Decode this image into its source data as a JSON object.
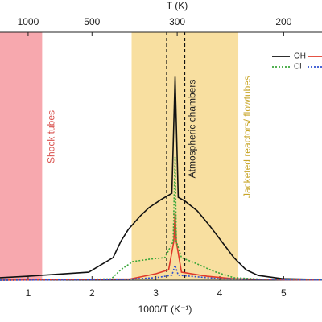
{
  "chart_data": {
    "type": "line",
    "xlabel": "1000/T (K⁻¹)",
    "xlim": [
      0.56,
      5.6
    ],
    "xticks": [
      1,
      2,
      3,
      4,
      5
    ],
    "ylim": [
      0,
      100
    ],
    "top_axis": {
      "label": "T (K)",
      "ticks": [
        1000,
        500,
        300,
        200
      ]
    },
    "regions": [
      {
        "label": "Shock tubes",
        "start": 0.56,
        "end": 1.22,
        "color": "#f7a8ae",
        "text_color": "#d9534f"
      },
      {
        "label": "Jacketed reactors/ flowtubes",
        "start": 2.62,
        "end": 4.29,
        "color": "#f8dfa0",
        "text_color": "#c8a62a"
      }
    ],
    "vlines": [
      3.17,
      3.45
    ],
    "vline_label": "Atmospheric chambers",
    "series": [
      {
        "name": "OH",
        "color": "#111111",
        "dash": "none",
        "x": [
          0.56,
          1,
          1.95,
          2.33,
          2.45,
          2.57,
          2.76,
          2.89,
          3.08,
          3.25,
          3.3,
          3.35,
          3.46,
          3.65,
          3.84,
          4.03,
          4.22,
          4.41,
          4.6,
          4.98,
          5.6
        ],
        "values": [
          1,
          1.6,
          3.2,
          9.1,
          15.6,
          20.5,
          26,
          29.2,
          32.5,
          35,
          82,
          33.4,
          31.8,
          27.9,
          22,
          15.6,
          9.1,
          4.2,
          1.9,
          0.6,
          0.3
        ]
      },
      {
        "color": "#e03a2a",
        "dash": "none",
        "x": [
          0.56,
          2.6,
          3.0,
          3.2,
          3.28,
          3.3,
          3.32,
          3.4,
          3.8,
          4.2,
          5,
          5.6
        ],
        "values": [
          0,
          0.5,
          2.6,
          4.2,
          15.6,
          27,
          15.6,
          3.2,
          1.6,
          0.6,
          0.2,
          0.1
        ]
      },
      {
        "name": "Cl",
        "color": "#3aa63a",
        "dash": "2,2",
        "x": [
          0.56,
          2.3,
          2.45,
          2.64,
          2.89,
          3.14,
          3.27,
          3.3,
          3.32,
          3.4,
          3.65,
          3.9,
          4.22,
          4.72,
          5.6
        ],
        "values": [
          0,
          0.5,
          4.2,
          7.5,
          8.4,
          9.1,
          15.6,
          49.7,
          15.6,
          9.1,
          6.5,
          3.6,
          1,
          0.3,
          0.2
        ]
      },
      {
        "color": "#3050d0",
        "dash": "2,2",
        "x": [
          0.56,
          2.5,
          3.0,
          3.25,
          3.3,
          3.35,
          4,
          5,
          5.6
        ],
        "values": [
          0,
          0.3,
          1,
          2,
          6,
          2,
          0.6,
          0.2,
          0.1
        ]
      }
    ]
  }
}
